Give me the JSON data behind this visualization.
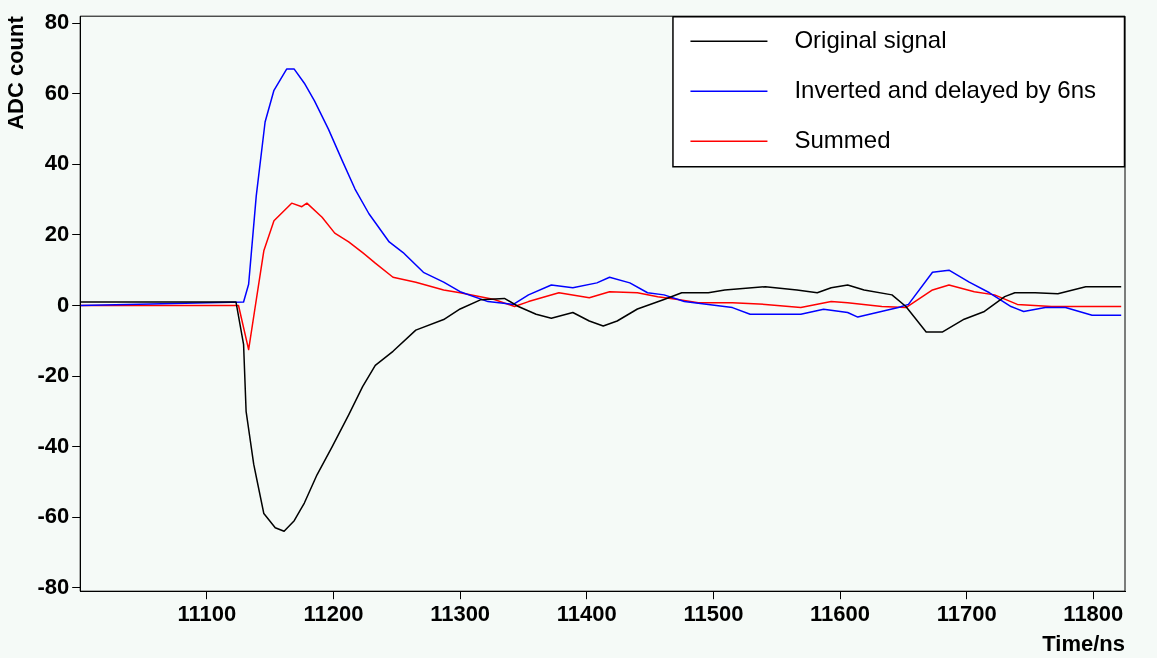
{
  "chart_data": {
    "type": "line",
    "xlabel": "Time/ns",
    "ylabel": "ADC count",
    "xlim": [
      11000,
      11825
    ],
    "xticks": [
      11100,
      11200,
      11300,
      11400,
      11500,
      11600,
      11700,
      11800
    ],
    "ylim": [
      -81,
      82
    ],
    "yticks": [
      -80,
      -60,
      -40,
      -20,
      0,
      20,
      40,
      60,
      80
    ],
    "grid": false,
    "legend": "top right",
    "marker": "none",
    "line_style": "solid",
    "series": [
      {
        "name": "Original signal",
        "color": "#000000",
        "x": [
          11000,
          11123,
          11129,
          11131,
          11137,
          11145,
          11154,
          11161,
          11169,
          11177,
          11187,
          11199,
          11212,
          11223,
          11233,
          11247,
          11265,
          11287,
          11300,
          11316,
          11335,
          11346,
          11360,
          11372,
          11389,
          11402,
          11413,
          11424,
          11440,
          11461,
          11475,
          11496,
          11509,
          11541,
          11566,
          11582,
          11593,
          11606,
          11619,
          11641,
          11652,
          11668,
          11681,
          11698,
          11714,
          11730,
          11738,
          11754,
          11772,
          11794,
          11822
        ],
        "values": [
          1,
          1,
          -11,
          -30,
          -45,
          -59,
          -63,
          -64,
          -61,
          -56,
          -48,
          -40,
          -31,
          -23,
          -17,
          -13,
          -7,
          -4,
          -1,
          1.6,
          2,
          -0.3,
          -2.5,
          -3.6,
          -2,
          -4.4,
          -5.8,
          -4.4,
          -1,
          1.7,
          3.6,
          3.6,
          4.4,
          5.3,
          4.4,
          3.6,
          5,
          5.8,
          4.4,
          3,
          -0.3,
          -7.5,
          -7.5,
          -3.9,
          -1.7,
          2.5,
          3.6,
          3.6,
          3.3,
          5.3,
          5.3
        ]
      },
      {
        "name": "Inverted and delayed by 6ns",
        "color": "#0000ff",
        "x": [
          11000,
          11129,
          11133,
          11139,
          11146,
          11153,
          11163,
          11169,
          11177,
          11185,
          11196,
          11207,
          11217,
          11228,
          11244,
          11255,
          11271,
          11287,
          11300,
          11322,
          11342,
          11354,
          11372,
          11389,
          11408,
          11418,
          11434,
          11448,
          11461,
          11477,
          11515,
          11529,
          11569,
          11587,
          11606,
          11614,
          11646,
          11654,
          11673,
          11686,
          11702,
          11718,
          11735,
          11745,
          11762,
          11778,
          11799,
          11822
        ],
        "values": [
          0,
          1,
          6,
          31,
          52,
          61,
          67,
          67,
          63,
          58,
          50,
          41,
          33,
          26,
          18,
          15,
          9.4,
          6.6,
          3.9,
          1.1,
          0.3,
          3,
          5.8,
          5,
          6.4,
          8,
          6.4,
          3.6,
          3,
          1.1,
          -0.6,
          -2.5,
          -2.5,
          -1.1,
          -2,
          -3.3,
          -0.6,
          0.3,
          9.4,
          10,
          6.6,
          3.6,
          -0.3,
          -1.7,
          -0.6,
          -0.6,
          -2.8,
          -2.8
        ]
      },
      {
        "name": "Summed",
        "color": "#ff0000",
        "x": [
          11000,
          11125,
          11133,
          11145,
          11153,
          11167,
          11175,
          11179,
          11191,
          11201,
          11212,
          11223,
          11233,
          11247,
          11265,
          11287,
          11300,
          11327,
          11343,
          11354,
          11378,
          11402,
          11418,
          11440,
          11456,
          11472,
          11488,
          11515,
          11541,
          11569,
          11593,
          11606,
          11633,
          11652,
          11673,
          11686,
          11706,
          11722,
          11740,
          11767,
          11799,
          11822
        ],
        "values": [
          0,
          0,
          -12.5,
          15.5,
          24,
          29,
          28,
          29,
          25,
          20.5,
          18,
          15,
          12,
          8,
          6.6,
          4.4,
          3.6,
          1.7,
          -0.3,
          1.1,
          3.6,
          2.2,
          3.9,
          3.6,
          2.5,
          1.7,
          0.8,
          0.8,
          0.3,
          -0.6,
          1.1,
          0.8,
          -0.3,
          -0.6,
          4.4,
          5.8,
          3.9,
          3,
          0.3,
          -0.3,
          -0.3,
          -0.3
        ]
      }
    ]
  }
}
